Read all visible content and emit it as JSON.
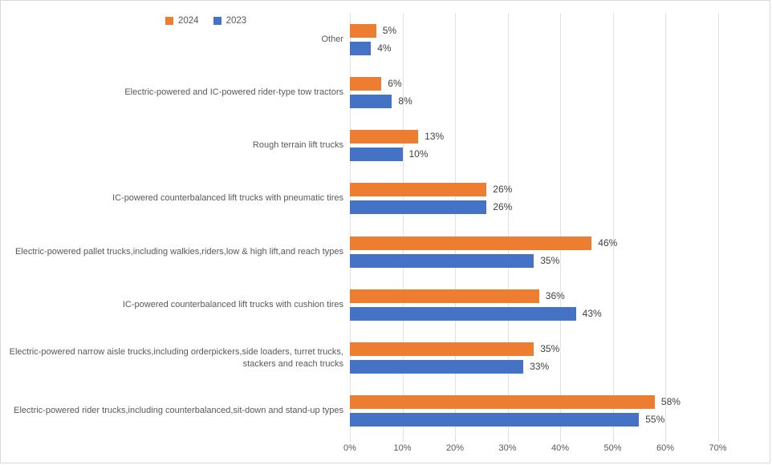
{
  "chart_data": {
    "type": "bar",
    "orientation": "horizontal",
    "title": "",
    "xlabel": "",
    "ylabel": "",
    "xlim": [
      0,
      70
    ],
    "x_ticks": [
      "0%",
      "10%",
      "20%",
      "30%",
      "40%",
      "50%",
      "60%",
      "70%"
    ],
    "grid": true,
    "legend_position": "top",
    "value_suffix": "%",
    "categories": [
      "Other",
      "Electric-powered and IC-powered rider-type tow tractors",
      "Rough terrain lift trucks",
      "IC-powered counterbalanced lift trucks with pneumatic tires",
      "Electric-powered pallet trucks,including walkies,riders,low & high lift,and reach types",
      "IC-powered counterbalanced lift trucks with cushion tires",
      "Electric-powered narrow aisle trucks,including orderpickers,side loaders, turret trucks, stackers and reach trucks",
      "Electric-powered rider trucks,including counterbalanced,sit-down and stand-up types"
    ],
    "series": [
      {
        "name": "2024",
        "color": "#ED7D31",
        "values": [
          5,
          6,
          13,
          26,
          46,
          36,
          35,
          58
        ]
      },
      {
        "name": "2023",
        "color": "#4472C4",
        "values": [
          4,
          8,
          10,
          26,
          35,
          43,
          33,
          55
        ]
      }
    ],
    "data_labels": {
      "2024": [
        "5%",
        "6%",
        "13%",
        "26%",
        "46%",
        "36%",
        "35%",
        "58%"
      ],
      "2023": [
        "4%",
        "8%",
        "10%",
        "26%",
        "35%",
        "43%",
        "33%",
        "55%"
      ]
    }
  },
  "colors": {
    "grid": "#E2E2E2",
    "axis_text": "#595959",
    "value_text": "#404040",
    "border": "#D9D9D9",
    "background": "#FFFFFF"
  }
}
